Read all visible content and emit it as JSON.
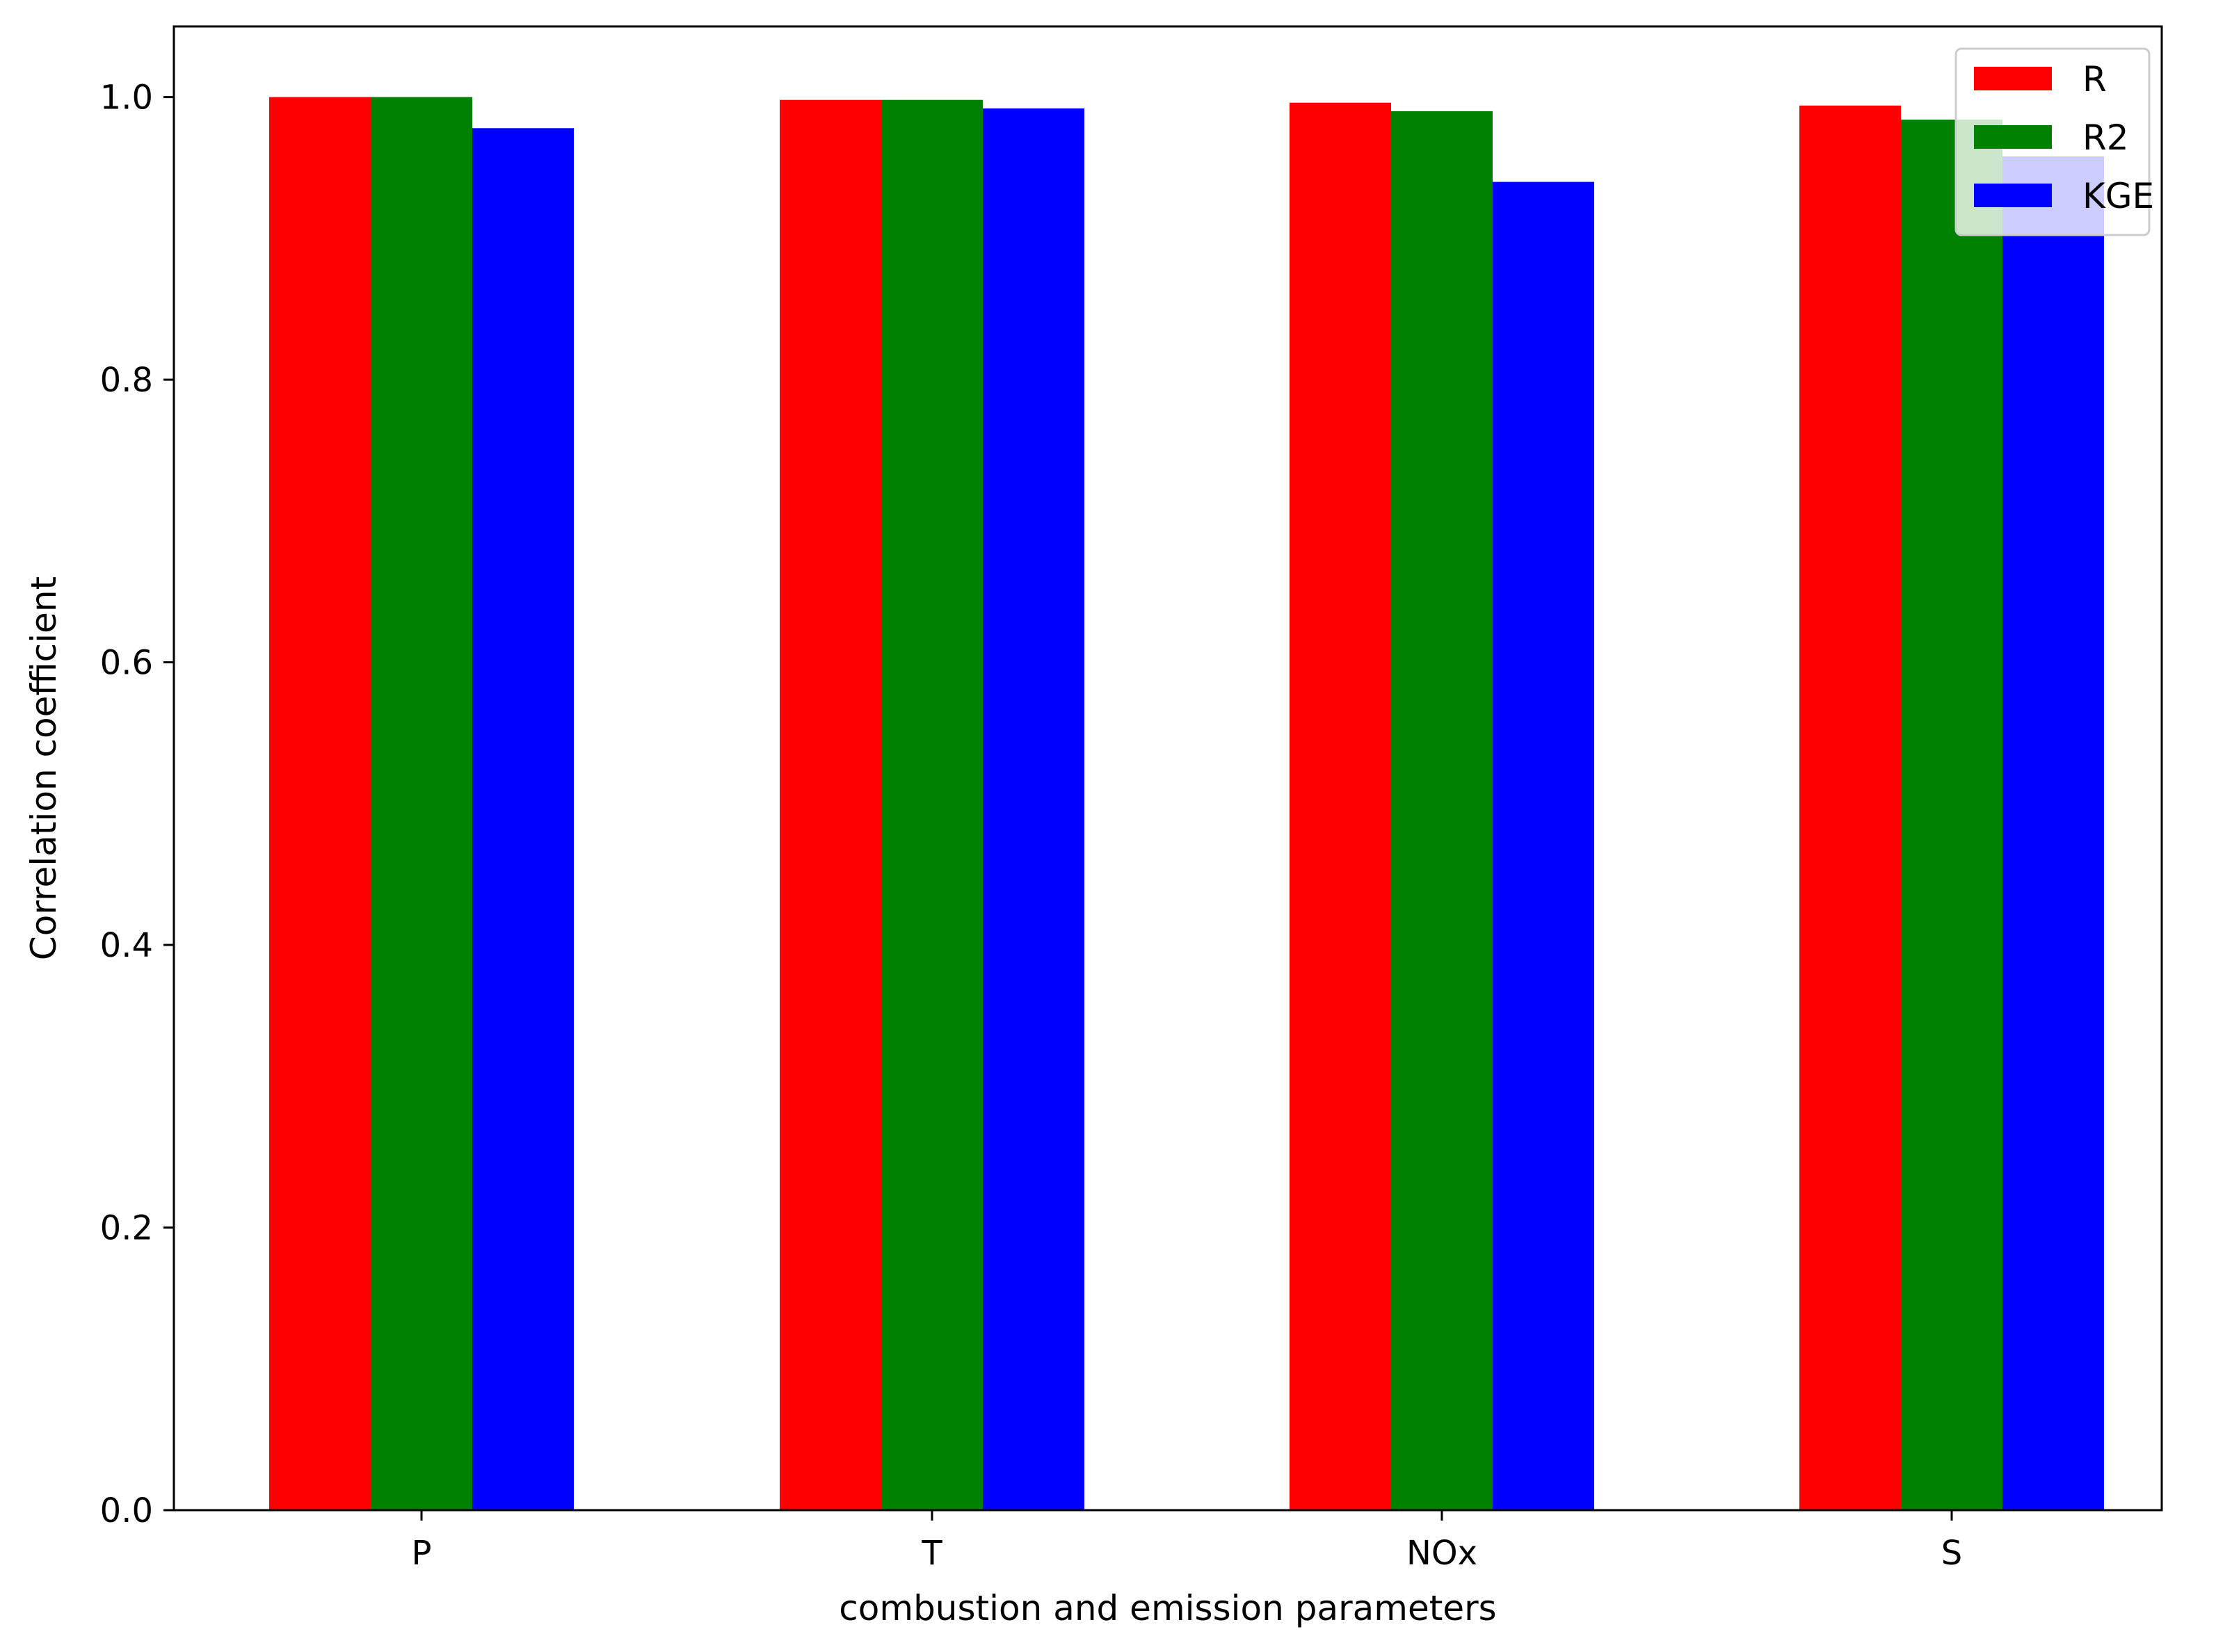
{
  "chart_data": {
    "type": "bar",
    "categories": [
      "P",
      "T",
      "NOx",
      "S"
    ],
    "series": [
      {
        "name": "R",
        "color": "#ff0000",
        "values": [
          1.0,
          0.998,
          0.996,
          0.994
        ]
      },
      {
        "name": "R2",
        "color": "#008000",
        "values": [
          1.0,
          0.998,
          0.99,
          0.984
        ]
      },
      {
        "name": "KGE",
        "color": "#0000ff",
        "values": [
          0.978,
          0.992,
          0.94,
          0.958
        ]
      }
    ],
    "xlabel": "combustion and emission parameters",
    "ylabel": "Correlation coefficient",
    "ylim": [
      0,
      1.05
    ],
    "yticks": [
      "0.0",
      "0.2",
      "0.4",
      "0.6",
      "0.8",
      "1.0"
    ],
    "legend": "top-right",
    "grid": false
  }
}
